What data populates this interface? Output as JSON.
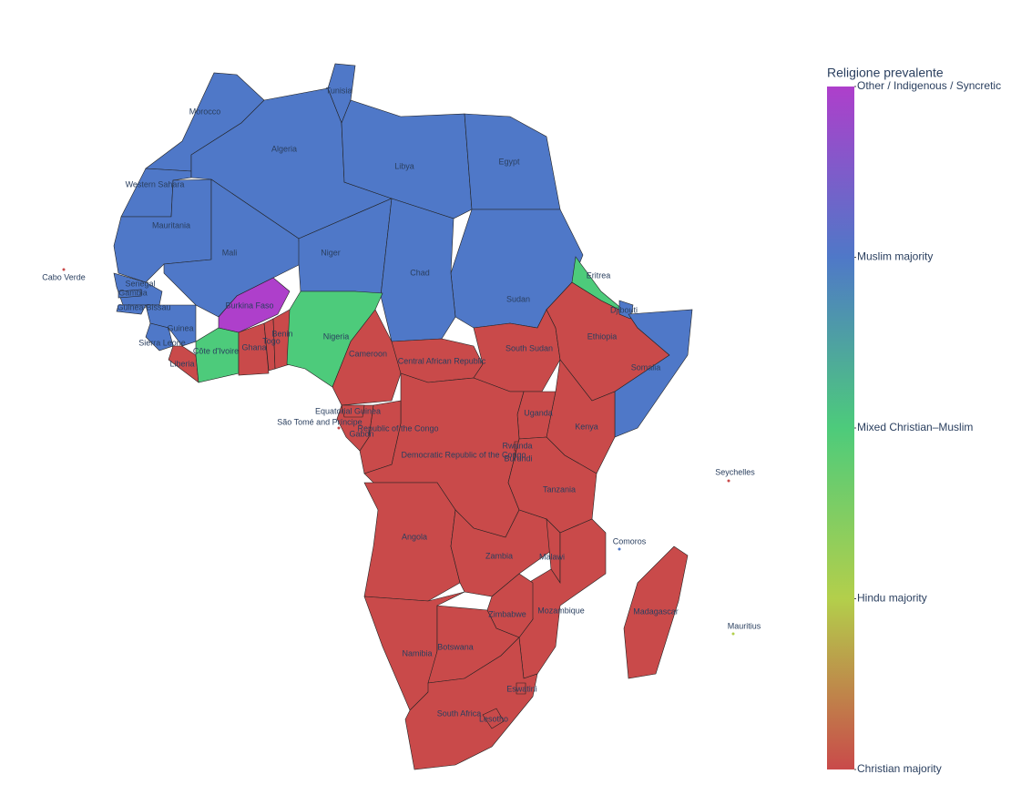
{
  "chart_data": {
    "type": "choropleth",
    "colorbar": {
      "title": "Religione prevalente",
      "colors": [
        "#c94a4a",
        "#b3cf4b",
        "#4dcb7b",
        "#4f78c8",
        "#ae3fcb"
      ],
      "range": [
        0,
        4
      ],
      "ticks": [
        {
          "value": 0,
          "label": "Christian majority"
        },
        {
          "value": 1,
          "label": "Hindu majority"
        },
        {
          "value": 2,
          "label": "Mixed Christian–Muslim"
        },
        {
          "value": 3,
          "label": "Muslim majority"
        },
        {
          "value": 4,
          "label": "Other / Indigenous / Syncretic"
        }
      ]
    },
    "locations": [
      "Morocco",
      "Western Sahara",
      "Mauritania",
      "Algeria",
      "Tunisia",
      "Libya",
      "Egypt",
      "Sudan",
      "Mali",
      "Niger",
      "Chad",
      "Senegal",
      "Gambia",
      "Guinea-Bissau",
      "Guinea",
      "Sierra Leone",
      "Liberia",
      "Côte d'Ivoire",
      "Burkina Faso",
      "Ghana",
      "Togo",
      "Benin",
      "Nigeria",
      "Cameroon",
      "Central African Republic",
      "South Sudan",
      "Ethiopia",
      "Eritrea",
      "Djibouti",
      "Somalia",
      "Kenya",
      "Uganda",
      "Democratic Republic of the Congo",
      "Republic of the Congo",
      "Gabon",
      "Equatorial Guinea",
      "Rwanda",
      "Burundi",
      "Tanzania",
      "Angola",
      "Zambia",
      "Malawi",
      "Mozambique",
      "Zimbabwe",
      "Namibia",
      "Botswana",
      "South Africa",
      "Lesotho",
      "Eswatini",
      "Madagascar",
      "Cabo Verde",
      "São Tomé and Príncipe",
      "Comoros",
      "Seychelles",
      "Mauritius"
    ],
    "values": [
      3,
      3,
      3,
      3,
      3,
      3,
      3,
      3,
      3,
      3,
      3,
      3,
      3,
      3,
      3,
      3,
      0,
      2,
      4,
      0,
      0,
      0,
      2,
      0,
      0,
      0,
      0,
      2,
      3,
      3,
      0,
      0,
      0,
      0,
      0,
      0,
      0,
      0,
      0,
      0,
      0,
      0,
      0,
      0,
      0,
      0,
      0,
      0,
      0,
      0,
      0,
      0,
      3,
      0,
      1
    ]
  }
}
